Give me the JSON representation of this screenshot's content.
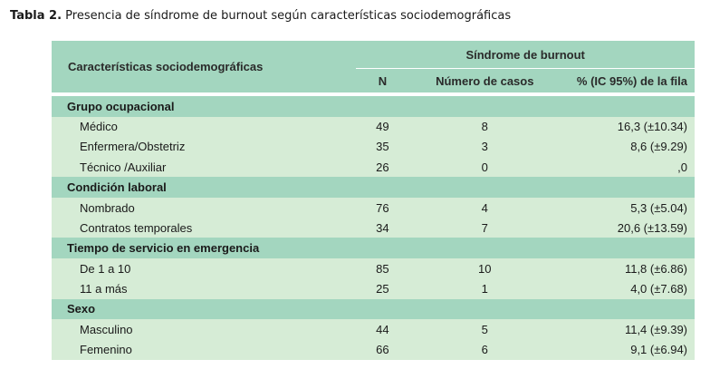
{
  "caption": {
    "label": "Tabla 2.",
    "text": " Presencia de síndrome de burnout según características sociodemográficas"
  },
  "header": {
    "row_title": "Características sociodemográficas",
    "group_title": "Síndrome de burnout",
    "col_n": "N",
    "col_casos": "Número de casos",
    "col_pct": "% (IC 95%) de la fila"
  },
  "groups": [
    {
      "label": "Grupo ocupacional",
      "rows": [
        {
          "name": "Médico",
          "n": "49",
          "casos": "8",
          "pct": "16,3 (±10.34)"
        },
        {
          "name": "Enfermera/Obstetriz",
          "n": "35",
          "casos": "3",
          "pct": "8,6 (±9.29)"
        },
        {
          "name": "Técnico /Auxiliar",
          "n": "26",
          "casos": "0",
          "pct": ",0"
        }
      ]
    },
    {
      "label": "Condición laboral",
      "rows": [
        {
          "name": "Nombrado",
          "n": "76",
          "casos": "4",
          "pct": "5,3 (±5.04)"
        },
        {
          "name": "Contratos temporales",
          "n": "34",
          "casos": "7",
          "pct": "20,6 (±13.59)"
        }
      ]
    },
    {
      "label": "Tiempo de servicio en emergencia",
      "rows": [
        {
          "name": "De 1 a 10",
          "n": "85",
          "casos": "10",
          "pct": "11,8 (±6.86)"
        },
        {
          "name": "11 a más",
          "n": "25",
          "casos": "1",
          "pct": "4,0 (±7.68)"
        }
      ]
    },
    {
      "label": "Sexo",
      "rows": [
        {
          "name": "Masculino",
          "n": "44",
          "casos": "5",
          "pct": "11,4 (±9.39)"
        },
        {
          "name": "Femenino",
          "n": "66",
          "casos": "6",
          "pct": "9,1 (±6.94)"
        }
      ]
    }
  ]
}
